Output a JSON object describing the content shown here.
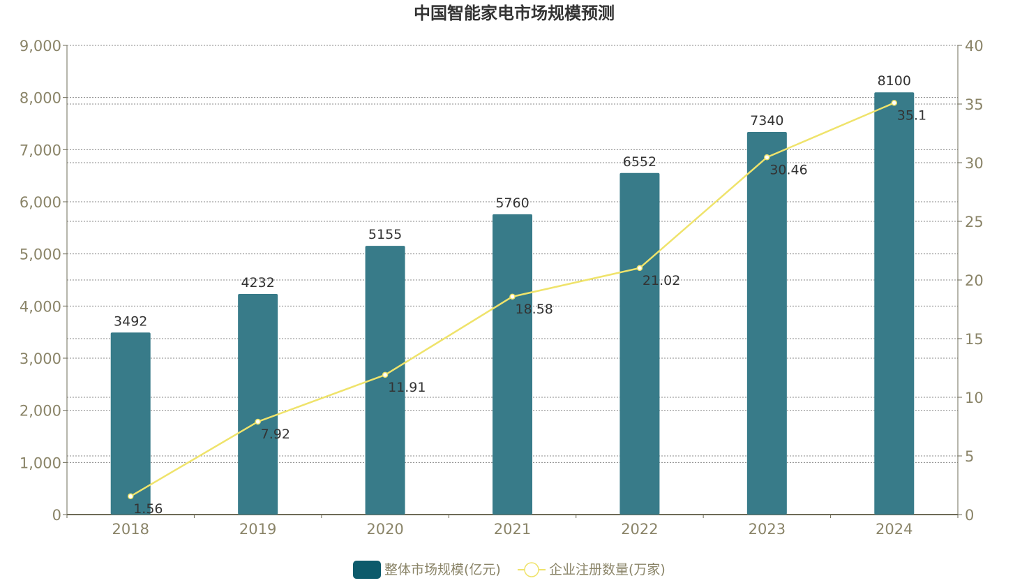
{
  "colors": {
    "bar": "#387b89",
    "legend_bar": "#0c5a6b",
    "line": "#efe36b",
    "axis": "#6e6b57",
    "grid": "#8a8a8a",
    "tick_text": "#8a8468",
    "label_text": "#333333"
  },
  "chart_data": {
    "type": "bar",
    "title": "中国智能家电市场规模预测",
    "categories": [
      "2018",
      "2019",
      "2020",
      "2021",
      "2022",
      "2023",
      "2024"
    ],
    "y_left": {
      "min": 0,
      "max": 9000,
      "ticks": [
        "0",
        "1,000",
        "2,000",
        "3,000",
        "4,000",
        "5,000",
        "6,000",
        "7,000",
        "8,000",
        "9,000"
      ]
    },
    "y_right": {
      "min": 0,
      "max": 40,
      "ticks": [
        "0",
        "5",
        "10",
        "15",
        "20",
        "25",
        "30",
        "35",
        "40"
      ]
    },
    "grid": true,
    "legend_position": "bottom",
    "series": [
      {
        "name": "整体市场规模(亿元)",
        "type": "bar",
        "axis": "left",
        "values": [
          3492,
          4232,
          5155,
          5760,
          6552,
          7340,
          8100
        ],
        "labels": [
          "3492",
          "4232",
          "5155",
          "5760",
          "6552",
          "7340",
          "8100"
        ]
      },
      {
        "name": "企业注册数量(万家)",
        "type": "line",
        "axis": "right",
        "values": [
          1.56,
          7.92,
          11.91,
          18.58,
          21.02,
          30.46,
          35.1
        ],
        "labels": [
          "1.56",
          "7.92",
          "11.91",
          "18.58",
          "21.02",
          "30.46",
          "35.1"
        ]
      }
    ]
  }
}
